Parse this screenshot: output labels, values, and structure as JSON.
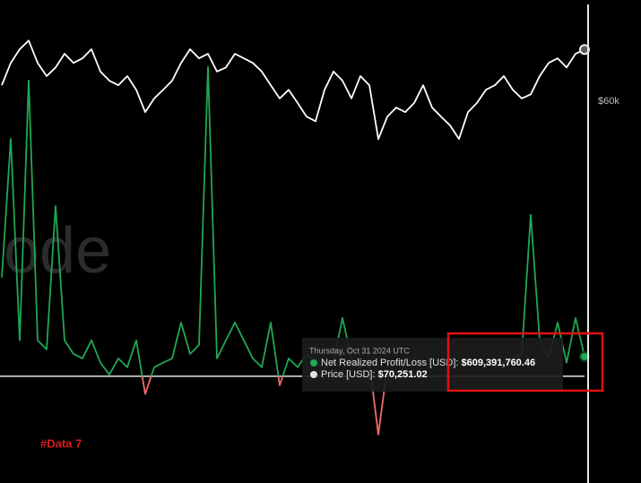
{
  "chart_data": {
    "type": "line",
    "watermark": "ode",
    "annotation": "#Data 7",
    "categories": [
      null,
      null,
      null,
      null,
      null,
      null,
      null,
      null,
      null,
      null,
      null,
      null,
      null,
      null,
      null,
      null,
      null,
      null,
      null,
      null,
      null,
      null,
      null,
      null,
      null,
      null,
      null,
      null,
      null,
      null,
      null,
      null,
      null,
      null,
      null,
      null,
      null,
      null,
      null,
      null,
      null,
      null,
      null,
      null,
      null,
      null,
      null,
      null,
      null,
      null,
      null,
      null,
      null,
      null,
      null,
      null,
      null,
      null,
      null,
      null,
      null,
      null,
      null,
      null,
      null,
      null
    ],
    "ylim": [
      -3300000000,
      11630000000
    ],
    "y2lim": [
      -15200,
      80000
    ],
    "y2ticks": [
      {
        "value": 60000,
        "label": "$60k"
      }
    ],
    "series": [
      {
        "color": "#1fa855",
        "negative_color": "#f26a6a",
        "values": [
          3050000000,
          7340000000,
          1110000000,
          9140000000,
          1110000000,
          830000000,
          5260000000,
          1110000000,
          690000000,
          550000000,
          1110000000,
          420000000,
          50000000,
          550000000,
          280000000,
          1110000000,
          -550000000,
          280000000,
          420000000,
          550000000,
          1660000000,
          690000000,
          970000000,
          9560000000,
          550000000,
          1110000000,
          1660000000,
          1110000000,
          550000000,
          280000000,
          1660000000,
          -280000000,
          550000000,
          280000000,
          690000000,
          420000000,
          280000000,
          420000000,
          1800000000,
          550000000,
          280000000,
          420000000,
          -1800000000,
          280000000,
          420000000,
          280000000,
          550000000,
          420000000,
          550000000,
          420000000,
          550000000,
          420000000,
          550000000,
          420000000,
          280000000,
          550000000,
          420000000,
          550000000,
          690000000,
          4990000000,
          1110000000,
          550000000,
          1660000000,
          420000000,
          1800000000,
          609391760.46
        ]
      },
      {
        "color": "#ffffff",
        "axis": "y2",
        "values": [
          63200,
          67600,
          70300,
          72000,
          67600,
          65000,
          66700,
          69400,
          67600,
          68500,
          70300,
          65900,
          64100,
          63200,
          65000,
          62300,
          57900,
          60600,
          62300,
          64100,
          67600,
          70300,
          68500,
          69400,
          65900,
          66700,
          69400,
          68500,
          67600,
          65900,
          63200,
          60600,
          62300,
          59700,
          57000,
          56100,
          62300,
          65900,
          64100,
          60600,
          65000,
          63200,
          52600,
          57000,
          58800,
          57900,
          59700,
          63200,
          58800,
          57000,
          55300,
          52600,
          57900,
          59700,
          62300,
          63200,
          65000,
          62300,
          60600,
          61400,
          65000,
          67600,
          68500,
          66700,
          69400,
          70251.02
        ]
      }
    ],
    "tooltip": {
      "date": "Thursday, Oct 31 2024 UTC",
      "rows": [
        {
          "label": "Net Realized Profit/Loss [USD]:",
          "value": "$609,391,760.46"
        },
        {
          "label": "Price [USD]:",
          "value": "$70,251.02"
        }
      ]
    }
  }
}
